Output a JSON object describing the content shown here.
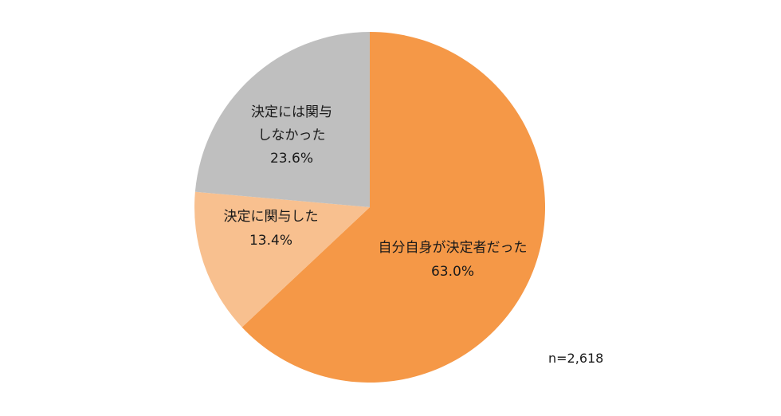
{
  "chart_data": {
    "type": "pie",
    "start": "top",
    "direction": "clockwise",
    "slices": [
      {
        "label_lines": [
          "自分自身が決定者だった"
        ],
        "value": 63.0,
        "value_label": "63.0%",
        "color": "#F59847"
      },
      {
        "label_lines": [
          "決定に関与した"
        ],
        "value": 13.4,
        "value_label": "13.4%",
        "color": "#F8C08F"
      },
      {
        "label_lines": [
          "決定には関与",
          "しなかった"
        ],
        "value": 23.6,
        "value_label": "23.6%",
        "color": "#BFBFBF"
      }
    ],
    "note": "n=2,618"
  }
}
